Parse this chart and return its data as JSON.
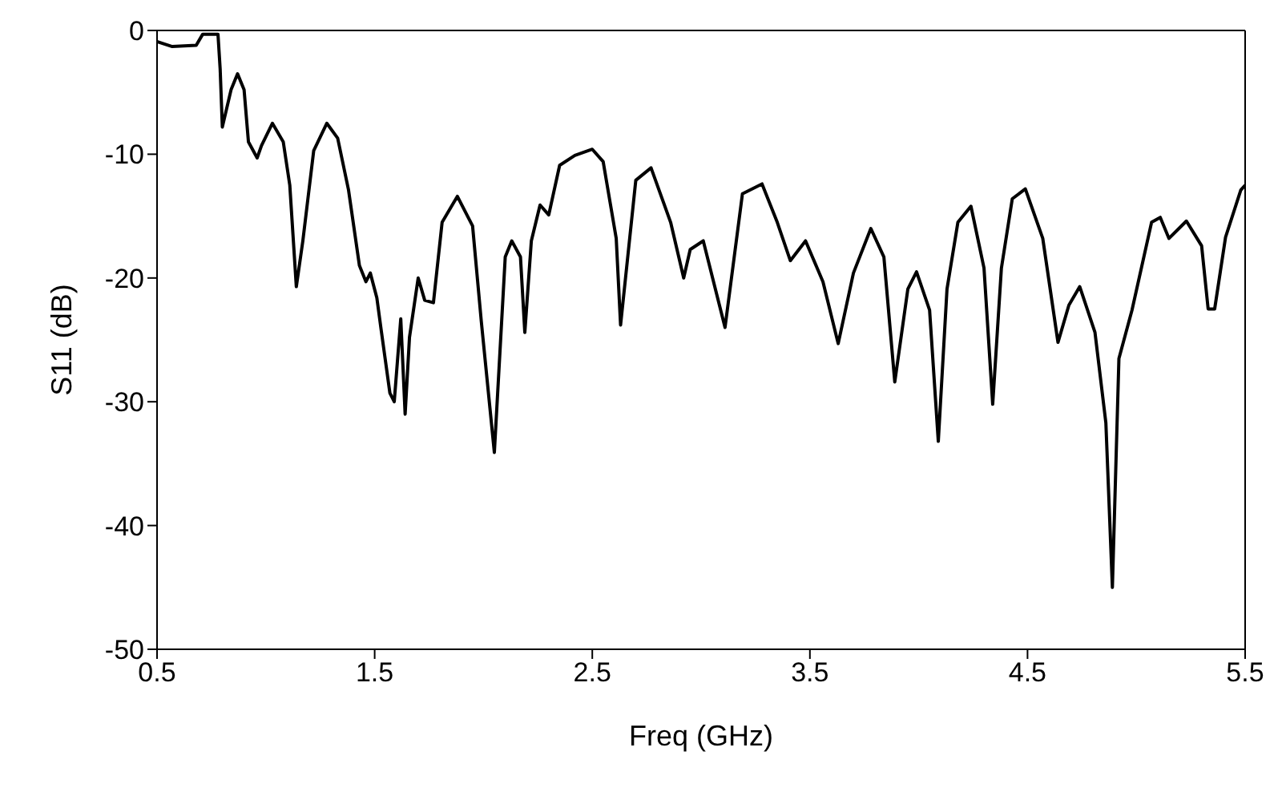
{
  "chart_data": {
    "type": "line",
    "xlabel": "Freq (GHz)",
    "ylabel": "S11 (dB)",
    "xlim": [
      0.5,
      5.5
    ],
    "xticks": [
      0.5,
      1.5,
      2.5,
      3.5,
      4.5,
      5.5
    ],
    "ylim": [
      -50,
      0
    ],
    "yticks": [
      -50,
      -40,
      -30,
      -20,
      -10,
      0
    ],
    "marker": "none",
    "line_style": "solid",
    "series": [
      {
        "color": "#000000",
        "x": [
          0.5,
          0.57,
          0.68,
          0.71,
          0.78,
          0.79,
          0.8,
          0.84,
          0.87,
          0.9,
          0.92,
          0.96,
          0.98,
          1.03,
          1.08,
          1.11,
          1.14,
          1.17,
          1.22,
          1.28,
          1.33,
          1.38,
          1.43,
          1.46,
          1.48,
          1.51,
          1.53,
          1.57,
          1.59,
          1.62,
          1.64,
          1.66,
          1.7,
          1.73,
          1.77,
          1.81,
          1.88,
          1.95,
          1.99,
          2.05,
          2.1,
          2.13,
          2.17,
          2.19,
          2.22,
          2.26,
          2.3,
          2.35,
          2.42,
          2.5,
          2.55,
          2.61,
          2.63,
          2.7,
          2.77,
          2.86,
          2.92,
          2.95,
          3.01,
          3.11,
          3.19,
          3.28,
          3.35,
          3.41,
          3.48,
          3.56,
          3.63,
          3.7,
          3.78,
          3.84,
          3.89,
          3.95,
          3.99,
          4.05,
          4.09,
          4.13,
          4.18,
          4.24,
          4.3,
          4.34,
          4.38,
          4.43,
          4.49,
          4.57,
          4.64,
          4.69,
          4.74,
          4.81,
          4.86,
          4.89,
          4.92,
          4.98,
          5.07,
          5.11,
          5.15,
          5.23,
          5.3,
          5.33,
          5.36,
          5.41,
          5.48,
          5.5
        ],
        "values": [
          -0.9,
          -1.3,
          -1.2,
          -0.3,
          -0.3,
          -3.1,
          -7.8,
          -4.8,
          -3.5,
          -4.8,
          -9,
          -10.3,
          -9.3,
          -7.5,
          -9,
          -12.5,
          -20.7,
          -17,
          -9.7,
          -7.5,
          -8.7,
          -12.9,
          -19,
          -20.3,
          -19.6,
          -21.6,
          -24.2,
          -29.3,
          -30,
          -23.3,
          -31,
          -24.8,
          -20,
          -21.8,
          -22,
          -15.5,
          -13.4,
          -15.8,
          -23.5,
          -34.1,
          -18.3,
          -17,
          -18.3,
          -24.4,
          -17,
          -14.1,
          -14.9,
          -10.9,
          -10.1,
          -9.6,
          -10.6,
          -16.8,
          -23.8,
          -12.1,
          -11.1,
          -15.5,
          -20,
          -17.7,
          -17,
          -24,
          -13.2,
          -12.4,
          -15.5,
          -18.6,
          -17,
          -20.3,
          -25.3,
          -19.6,
          -16,
          -18.3,
          -28.4,
          -20.9,
          -19.5,
          -22.6,
          -33.2,
          -20.9,
          -15.5,
          -14.2,
          -19.2,
          -30.2,
          -19.2,
          -13.6,
          -12.8,
          -16.8,
          -25.2,
          -22.2,
          -20.7,
          -24.4,
          -31.7,
          -45,
          -26.5,
          -22.6,
          -15.5,
          -15.1,
          -16.8,
          -15.4,
          -17.4,
          -22.5,
          -22.5,
          -16.7,
          -12.9,
          -12.5
        ]
      }
    ]
  }
}
